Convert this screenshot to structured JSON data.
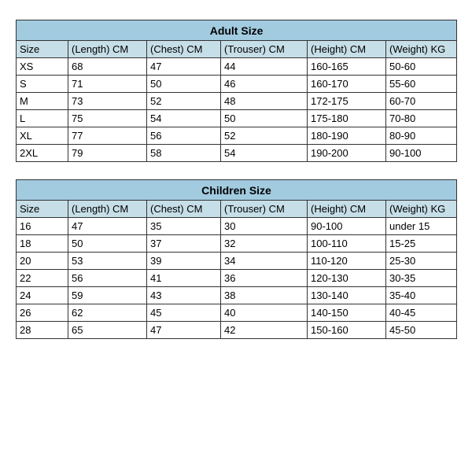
{
  "tables": [
    {
      "title": "Adult Size",
      "title_bg": "#a2cbe0",
      "header_bg": "#c6dee7",
      "columns": [
        "Size",
        "(Length) CM",
        "(Chest) CM",
        "(Trouser) CM",
        "(Height) CM",
        "(Weight) KG"
      ],
      "rows": [
        [
          "XS",
          "68",
          "47",
          "44",
          "160-165",
          "50-60"
        ],
        [
          "S",
          "71",
          "50",
          "46",
          "160-170",
          "55-60"
        ],
        [
          "M",
          "73",
          "52",
          "48",
          "172-175",
          "60-70"
        ],
        [
          "L",
          "75",
          "54",
          "50",
          "175-180",
          "70-80"
        ],
        [
          "XL",
          "77",
          "56",
          "52",
          "180-190",
          "80-90"
        ],
        [
          "2XL",
          "79",
          "58",
          "54",
          "190-200",
          "90-100"
        ]
      ]
    },
    {
      "title": "Children Size",
      "title_bg": "#a2cbe0",
      "header_bg": "#c6dee7",
      "columns": [
        "Size",
        "(Length) CM",
        "(Chest) CM",
        "(Trouser) CM",
        "(Height) CM",
        "(Weight) KG"
      ],
      "rows": [
        [
          "16",
          "47",
          "35",
          "30",
          "90-100",
          "under 15"
        ],
        [
          "18",
          "50",
          "37",
          "32",
          "100-110",
          "15-25"
        ],
        [
          "20",
          "53",
          "39",
          "34",
          "110-120",
          "25-30"
        ],
        [
          "22",
          "56",
          "41",
          "36",
          "120-130",
          "30-35"
        ],
        [
          "24",
          "59",
          "43",
          "38",
          "130-140",
          "35-40"
        ],
        [
          "26",
          "62",
          "45",
          "40",
          "140-150",
          "40-45"
        ],
        [
          "28",
          "65",
          "47",
          "42",
          "150-160",
          "45-50"
        ]
      ]
    }
  ],
  "border_color": "#333333",
  "row_bg": "#ffffff",
  "font_family": "Arial, sans-serif"
}
